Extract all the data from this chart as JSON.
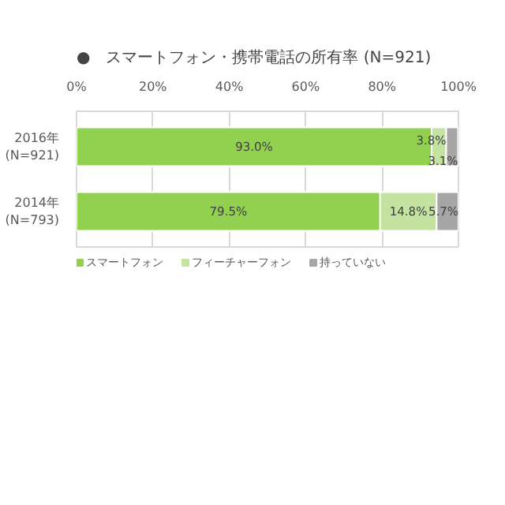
{
  "chart_data": {
    "type": "bar",
    "orientation": "horizontal",
    "stacked": true,
    "title": "●　スマートフォン・携帯電話の所有率 (N=921)",
    "categories": [
      "2016年\n(N=921)",
      "2014年\n(N=793)"
    ],
    "series": [
      {
        "name": "スマートフォン",
        "color": "#92d050",
        "values": [
          93.0,
          79.5
        ],
        "value_labels": [
          "93.0%",
          "79.5%"
        ]
      },
      {
        "name": "フィーチャーフォン",
        "color": "#c4e3a0",
        "values": [
          3.8,
          14.8
        ],
        "value_labels": [
          "3.8%",
          "14.8%"
        ]
      },
      {
        "name": "持っていない",
        "color": "#a6a6a6",
        "values": [
          3.1,
          5.7
        ],
        "value_labels": [
          "3.1%",
          "5.7%"
        ]
      }
    ],
    "xlim": [
      0,
      100
    ],
    "xticks": [
      {
        "value": 0,
        "label": "0%"
      },
      {
        "value": 20,
        "label": "20%"
      },
      {
        "value": 40,
        "label": "40%"
      },
      {
        "value": 60,
        "label": "60%"
      },
      {
        "value": 80,
        "label": "80%"
      },
      {
        "value": 100,
        "label": "100%"
      }
    ],
    "grid": "x",
    "legend": "bottom left"
  }
}
